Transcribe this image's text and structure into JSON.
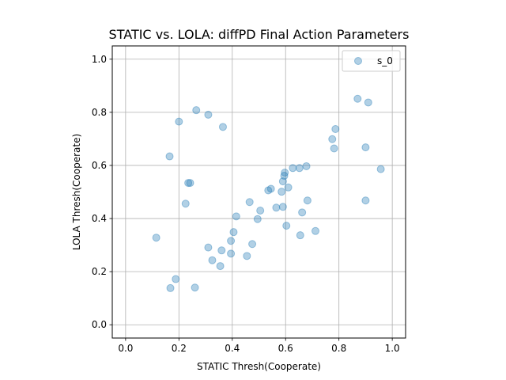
{
  "chart_data": {
    "type": "scatter",
    "title": "STATIC vs. LOLA: diffPD Final Action Parameters",
    "xlabel": "STATIC Thresh(Cooperate)",
    "ylabel": "LOLA Thresh(Cooperate)",
    "xlim": [
      -0.05,
      1.05
    ],
    "ylim": [
      -0.05,
      1.05
    ],
    "xticks": [
      "0.0",
      "0.2",
      "0.4",
      "0.6",
      "0.8",
      "1.0"
    ],
    "yticks": [
      "0.0",
      "0.2",
      "0.4",
      "0.6",
      "0.8",
      "1.0"
    ],
    "grid": true,
    "legend_position": "top-right",
    "series": [
      {
        "name": "s_0",
        "color": "#1f77b4",
        "alpha": 0.35,
        "points": [
          [
            0.115,
            0.328
          ],
          [
            0.165,
            0.634
          ],
          [
            0.168,
            0.138
          ],
          [
            0.188,
            0.172
          ],
          [
            0.2,
            0.765
          ],
          [
            0.225,
            0.456
          ],
          [
            0.235,
            0.534
          ],
          [
            0.242,
            0.534
          ],
          [
            0.26,
            0.14
          ],
          [
            0.265,
            0.808
          ],
          [
            0.31,
            0.791
          ],
          [
            0.31,
            0.291
          ],
          [
            0.325,
            0.243
          ],
          [
            0.355,
            0.221
          ],
          [
            0.36,
            0.28
          ],
          [
            0.365,
            0.745
          ],
          [
            0.395,
            0.316
          ],
          [
            0.395,
            0.268
          ],
          [
            0.405,
            0.349
          ],
          [
            0.415,
            0.408
          ],
          [
            0.455,
            0.259
          ],
          [
            0.465,
            0.462
          ],
          [
            0.475,
            0.304
          ],
          [
            0.495,
            0.398
          ],
          [
            0.505,
            0.43
          ],
          [
            0.535,
            0.506
          ],
          [
            0.545,
            0.512
          ],
          [
            0.565,
            0.441
          ],
          [
            0.585,
            0.501
          ],
          [
            0.59,
            0.54
          ],
          [
            0.59,
            0.444
          ],
          [
            0.595,
            0.561
          ],
          [
            0.597,
            0.573
          ],
          [
            0.603,
            0.373
          ],
          [
            0.61,
            0.517
          ],
          [
            0.627,
            0.59
          ],
          [
            0.652,
            0.59
          ],
          [
            0.655,
            0.337
          ],
          [
            0.662,
            0.423
          ],
          [
            0.678,
            0.597
          ],
          [
            0.682,
            0.468
          ],
          [
            0.712,
            0.353
          ],
          [
            0.775,
            0.699
          ],
          [
            0.782,
            0.664
          ],
          [
            0.787,
            0.737
          ],
          [
            0.87,
            0.851
          ],
          [
            0.9,
            0.668
          ],
          [
            0.9,
            0.468
          ],
          [
            0.91,
            0.837
          ],
          [
            0.957,
            0.586
          ]
        ]
      }
    ]
  }
}
